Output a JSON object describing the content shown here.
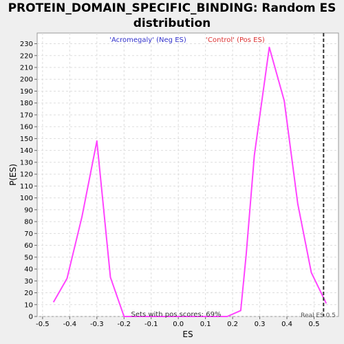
{
  "chart_data": {
    "type": "line",
    "title_lines": [
      "PROTEIN_DOMAIN_SPECIFIC_BINDING: Random ES",
      "distribution"
    ],
    "xlabel": "ES",
    "ylabel": "P(ES)",
    "xlim": [
      -0.52,
      0.59
    ],
    "ylim": [
      0,
      239
    ],
    "x_ticks": [
      -0.5,
      -0.4,
      -0.3,
      -0.2,
      -0.1,
      0.0,
      0.1,
      0.2,
      0.3,
      0.4,
      0.5
    ],
    "x_tick_labels": [
      "-0.5",
      "-0.4",
      "-0.3",
      "-0.2",
      "-0.1",
      "0.0",
      "0.1",
      "0.2",
      "0.3",
      "0.4",
      "0.5"
    ],
    "y_ticks": [
      0,
      10,
      20,
      30,
      40,
      50,
      60,
      70,
      80,
      90,
      100,
      110,
      120,
      130,
      140,
      150,
      160,
      170,
      180,
      190,
      200,
      210,
      220,
      230
    ],
    "grid": true,
    "line_color": "#ff44ff",
    "series": [
      {
        "x": [
          -0.46,
          -0.41,
          -0.355,
          -0.3,
          -0.25,
          -0.2,
          -0.15,
          -0.1,
          -0.05,
          0.0,
          0.05,
          0.1,
          0.15,
          0.18,
          0.23,
          0.25,
          0.28,
          0.335,
          0.39,
          0.44,
          0.49,
          0.545
        ],
        "y": [
          12,
          32,
          84,
          148,
          33,
          0,
          0,
          0,
          0,
          0,
          0,
          0,
          0,
          0,
          5,
          52,
          136,
          227,
          182,
          95,
          37,
          11
        ]
      }
    ],
    "annotations": {
      "neg_label": "'Acromegaly' (Neg ES)",
      "pos_label": "'Control' (Pos ES)",
      "pos_scores_text": "Sets with pos scores: 69%",
      "real_es_text": "Real ES 0.5",
      "real_es_value": 0.535,
      "neg_color": "#3333cc",
      "pos_color": "#dd3333"
    }
  }
}
